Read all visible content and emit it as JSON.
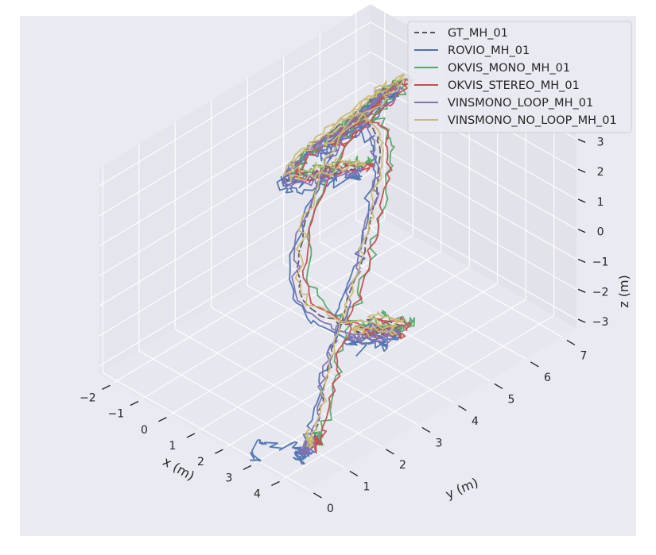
{
  "chart_data": {
    "type": "line",
    "projection": "3d",
    "title": "",
    "style": "seaborn-darkgrid",
    "legend_position": "upper-right",
    "colors": {
      "background": "#ffffff",
      "pane": "#eaeaf2",
      "grid": "#ffffff",
      "text": "#262626"
    },
    "axes": {
      "x": {
        "label": "x (m)",
        "range": [
          -2.5,
          4.8
        ],
        "ticks": [
          -2,
          -1,
          0,
          1,
          2,
          3,
          4
        ]
      },
      "y": {
        "label": "y (m)",
        "range": [
          -0.1,
          7.4
        ],
        "ticks": [
          0,
          1,
          2,
          3,
          4,
          5,
          6,
          7
        ]
      },
      "z": {
        "label": "z (m)",
        "range": [
          -3.3,
          3.6
        ],
        "ticks": [
          -3,
          -2,
          -1,
          0,
          1,
          2,
          3
        ]
      }
    },
    "base_path": [
      [
        4.2,
        0.4,
        -2.5
      ],
      [
        4.1,
        0.5,
        -2.4
      ],
      [
        4.3,
        0.4,
        -2.5
      ],
      [
        4.0,
        0.6,
        -2.4
      ],
      [
        4.2,
        0.5,
        -2.5
      ],
      [
        4.0,
        0.8,
        -2.4
      ],
      [
        3.4,
        1.5,
        -2.0
      ],
      [
        2.8,
        2.2,
        -1.5
      ],
      [
        2.2,
        3.0,
        -1.0
      ],
      [
        1.7,
        3.8,
        -0.3
      ],
      [
        1.2,
        4.5,
        0.5
      ],
      [
        0.9,
        5.0,
        1.5
      ],
      [
        0.6,
        5.2,
        2.3
      ],
      [
        0.4,
        5.0,
        3.0
      ],
      [
        0.3,
        4.4,
        3.2
      ],
      [
        0.2,
        3.8,
        3.1
      ],
      [
        0.1,
        3.2,
        2.7
      ],
      [
        0.0,
        3.4,
        2.2
      ],
      [
        -0.1,
        4.0,
        1.8
      ],
      [
        -0.3,
        4.6,
        1.4
      ],
      [
        -0.5,
        5.2,
        0.9
      ],
      [
        -0.7,
        5.7,
        0.4
      ],
      [
        -1.0,
        6.0,
        0.0
      ],
      [
        -1.4,
        6.0,
        -0.3
      ],
      [
        -1.7,
        5.5,
        -0.3
      ],
      [
        -1.8,
        4.8,
        0.0
      ],
      [
        -1.6,
        4.4,
        0.6
      ],
      [
        -1.2,
        4.8,
        1.4
      ],
      [
        -0.9,
        5.5,
        2.0
      ],
      [
        -0.7,
        6.3,
        2.4
      ],
      [
        -0.8,
        6.9,
        2.3
      ],
      [
        -1.1,
        7.1,
        1.8
      ],
      [
        -1.4,
        6.8,
        1.2
      ],
      [
        -1.6,
        6.2,
        0.8
      ],
      [
        -1.5,
        5.5,
        0.8
      ],
      [
        -1.2,
        5.2,
        1.3
      ],
      [
        -0.9,
        5.6,
        1.9
      ],
      [
        -0.8,
        6.2,
        2.3
      ],
      [
        -1.0,
        6.6,
        2.2
      ],
      [
        -1.3,
        6.4,
        1.6
      ],
      [
        -1.5,
        5.9,
        0.9
      ],
      [
        -1.2,
        5.0,
        0.2
      ],
      [
        -0.6,
        4.0,
        -0.8
      ],
      [
        0.3,
        3.3,
        -1.6
      ],
      [
        1.3,
        3.4,
        -2.0
      ],
      [
        2.1,
        4.0,
        -2.3
      ],
      [
        2.3,
        4.5,
        -2.5
      ],
      [
        2.0,
        4.4,
        -2.4
      ],
      [
        1.7,
        4.1,
        -2.3
      ],
      [
        2.1,
        4.3,
        -2.6
      ],
      [
        2.4,
        4.2,
        -2.5
      ],
      [
        2.2,
        3.9,
        -2.3
      ],
      [
        2.0,
        3.5,
        -2.1
      ],
      [
        1.9,
        3.6,
        -2.2
      ],
      [
        2.1,
        3.7,
        -2.4
      ]
    ],
    "series": [
      {
        "name": "GT_MH_01",
        "color": "#55555f",
        "dash": "8,5",
        "offset": [
          0,
          0,
          0
        ],
        "jitter": 0.04,
        "start": 0
      },
      {
        "name": "ROVIO_MH_01",
        "color": "#4c72b0",
        "dash": "",
        "offset": [
          0.3,
          -0.4,
          0.1
        ],
        "jitter": 0.14,
        "start": 6,
        "prefix": [
          [
            3.3,
            -0.3,
            -3.0
          ],
          [
            3.0,
            -0.1,
            -2.9
          ],
          [
            3.1,
            0.1,
            -2.7
          ],
          [
            3.6,
            0.2,
            -2.6
          ],
          [
            3.9,
            0.3,
            -2.5
          ]
        ]
      },
      {
        "name": "OKVIS_MONO_MH_01",
        "color": "#55a868",
        "dash": "",
        "offset": [
          -0.1,
          0.35,
          -0.15
        ],
        "jitter": 0.12,
        "start": 12
      },
      {
        "name": "OKVIS_STEREO_MH_01",
        "color": "#c44e52",
        "dash": "",
        "offset": [
          0.1,
          0.15,
          -0.05
        ],
        "jitter": 0.08,
        "start": 18
      },
      {
        "name": "VINSMONO_LOOP_MH_01",
        "color": "#8172b2",
        "dash": "",
        "offset": [
          0.15,
          -0.2,
          0.05
        ],
        "jitter": 0.1,
        "start": 24
      },
      {
        "name": "VINSMONO_NO_LOOP_MH_01",
        "color": "#ccb974",
        "dash": "",
        "offset": [
          -0.05,
          0.05,
          0.05
        ],
        "jitter": 0.09,
        "start": 30
      }
    ]
  }
}
